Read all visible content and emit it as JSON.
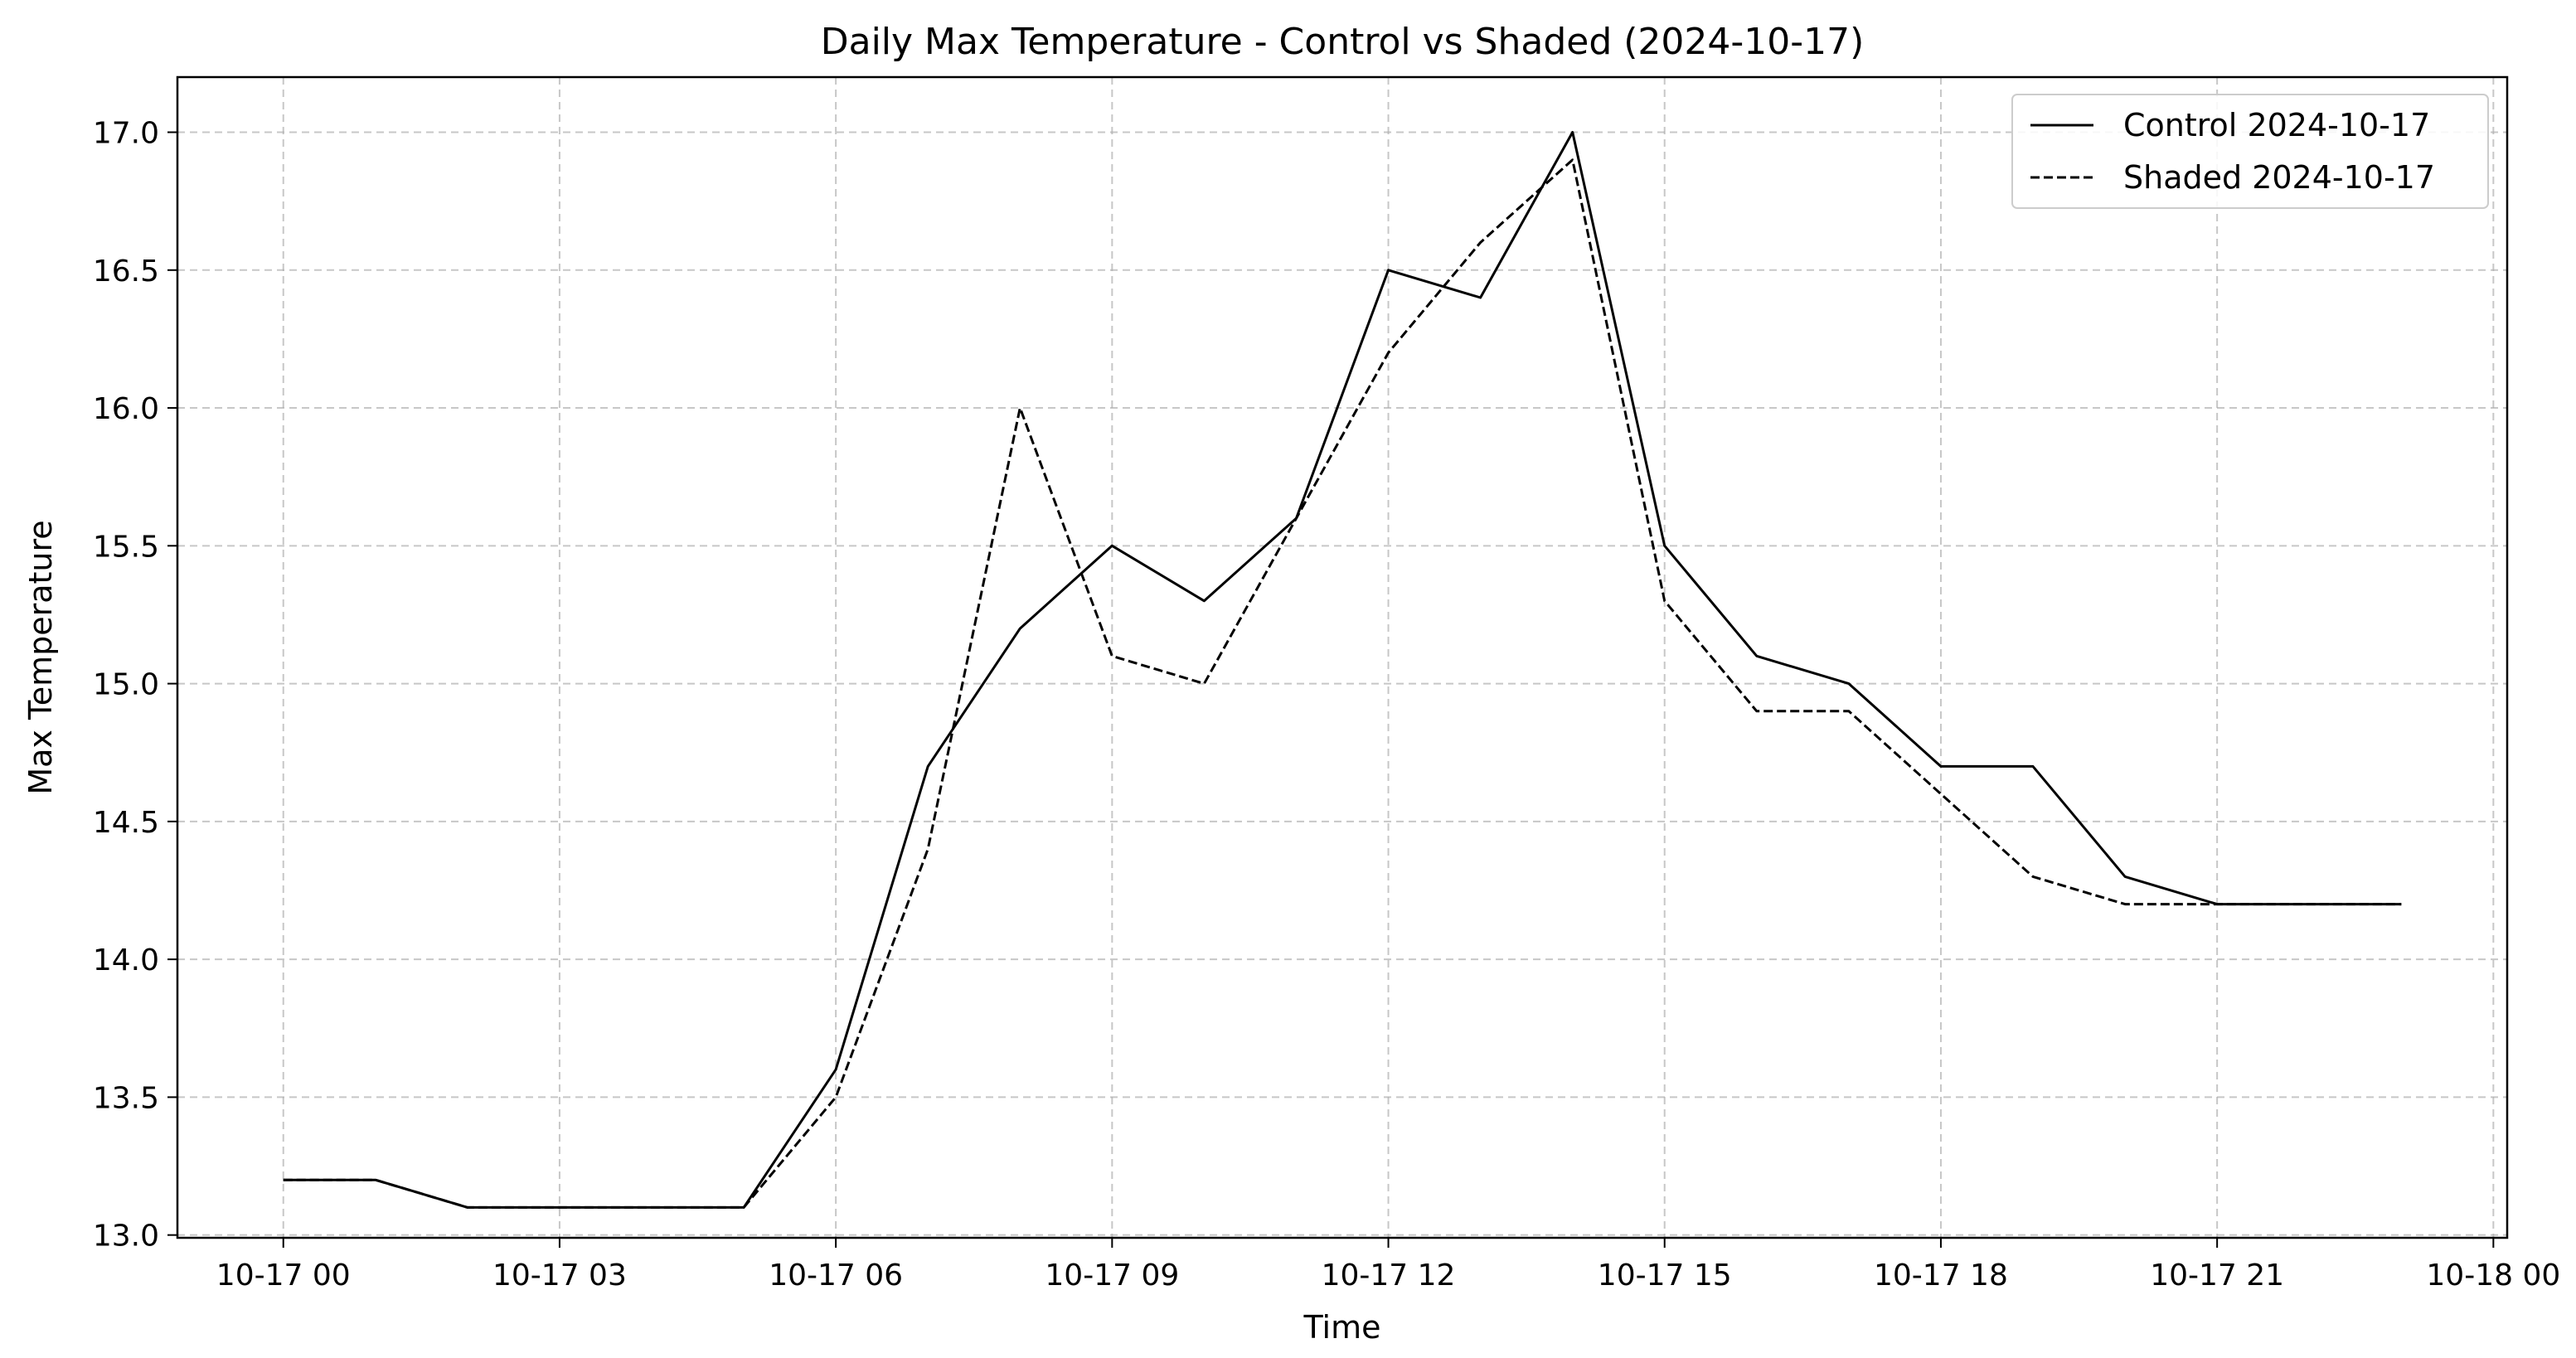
{
  "chart_data": {
    "type": "line",
    "title": "Daily Max Temperature - Control vs Shaded (2024-10-17)",
    "xlabel": "Time",
    "ylabel": "Max Temperature",
    "x": [
      "10-17 00",
      "10-17 01",
      "10-17 02",
      "10-17 03",
      "10-17 04",
      "10-17 05",
      "10-17 06",
      "10-17 07",
      "10-17 08",
      "10-17 09",
      "10-17 10",
      "10-17 11",
      "10-17 12",
      "10-17 13",
      "10-17 14",
      "10-17 15",
      "10-17 16",
      "10-17 17",
      "10-17 18",
      "10-17 19",
      "10-17 20",
      "10-17 21",
      "10-17 22",
      "10-17 23"
    ],
    "x_hours": [
      0,
      1,
      2,
      3,
      4,
      5,
      6,
      7,
      8,
      9,
      10,
      11,
      12,
      13,
      14,
      15,
      16,
      17,
      18,
      19,
      20,
      21,
      22,
      23
    ],
    "xlim_hours": [
      -1.15,
      24.15
    ],
    "x_ticks": [
      {
        "hour": 0,
        "label": "10-17 00"
      },
      {
        "hour": 3,
        "label": "10-17 03"
      },
      {
        "hour": 6,
        "label": "10-17 06"
      },
      {
        "hour": 9,
        "label": "10-17 09"
      },
      {
        "hour": 12,
        "label": "10-17 12"
      },
      {
        "hour": 15,
        "label": "10-17 15"
      },
      {
        "hour": 18,
        "label": "10-17 18"
      },
      {
        "hour": 21,
        "label": "10-17 21"
      },
      {
        "hour": 24,
        "label": "10-18 00"
      }
    ],
    "ylim": [
      12.99,
      17.2
    ],
    "y_ticks": [
      {
        "value": 13.0,
        "label": "13.0"
      },
      {
        "value": 13.5,
        "label": "13.5"
      },
      {
        "value": 14.0,
        "label": "14.0"
      },
      {
        "value": 14.5,
        "label": "14.5"
      },
      {
        "value": 15.0,
        "label": "15.0"
      },
      {
        "value": 15.5,
        "label": "15.5"
      },
      {
        "value": 16.0,
        "label": "16.0"
      },
      {
        "value": 16.5,
        "label": "16.5"
      },
      {
        "value": 17.0,
        "label": "17.0"
      }
    ],
    "grid": true,
    "legend_position": "top-right",
    "series": [
      {
        "name": "Control 2024-10-17",
        "style": "solid",
        "color": "#000000",
        "values": [
          13.2,
          13.2,
          13.1,
          13.1,
          13.1,
          13.1,
          13.6,
          14.7,
          15.2,
          15.5,
          15.3,
          15.6,
          16.5,
          16.4,
          17.0,
          15.5,
          15.1,
          15.0,
          14.7,
          14.7,
          14.3,
          14.2,
          14.2,
          14.2
        ]
      },
      {
        "name": "Shaded 2024-10-17",
        "style": "dashed",
        "color": "#000000",
        "values": [
          13.2,
          13.2,
          13.1,
          13.1,
          13.1,
          13.1,
          13.5,
          14.4,
          16.0,
          15.1,
          15.0,
          15.6,
          16.2,
          16.6,
          16.9,
          15.3,
          14.9,
          14.9,
          14.6,
          14.3,
          14.2,
          14.2,
          14.2,
          14.2
        ]
      }
    ]
  }
}
